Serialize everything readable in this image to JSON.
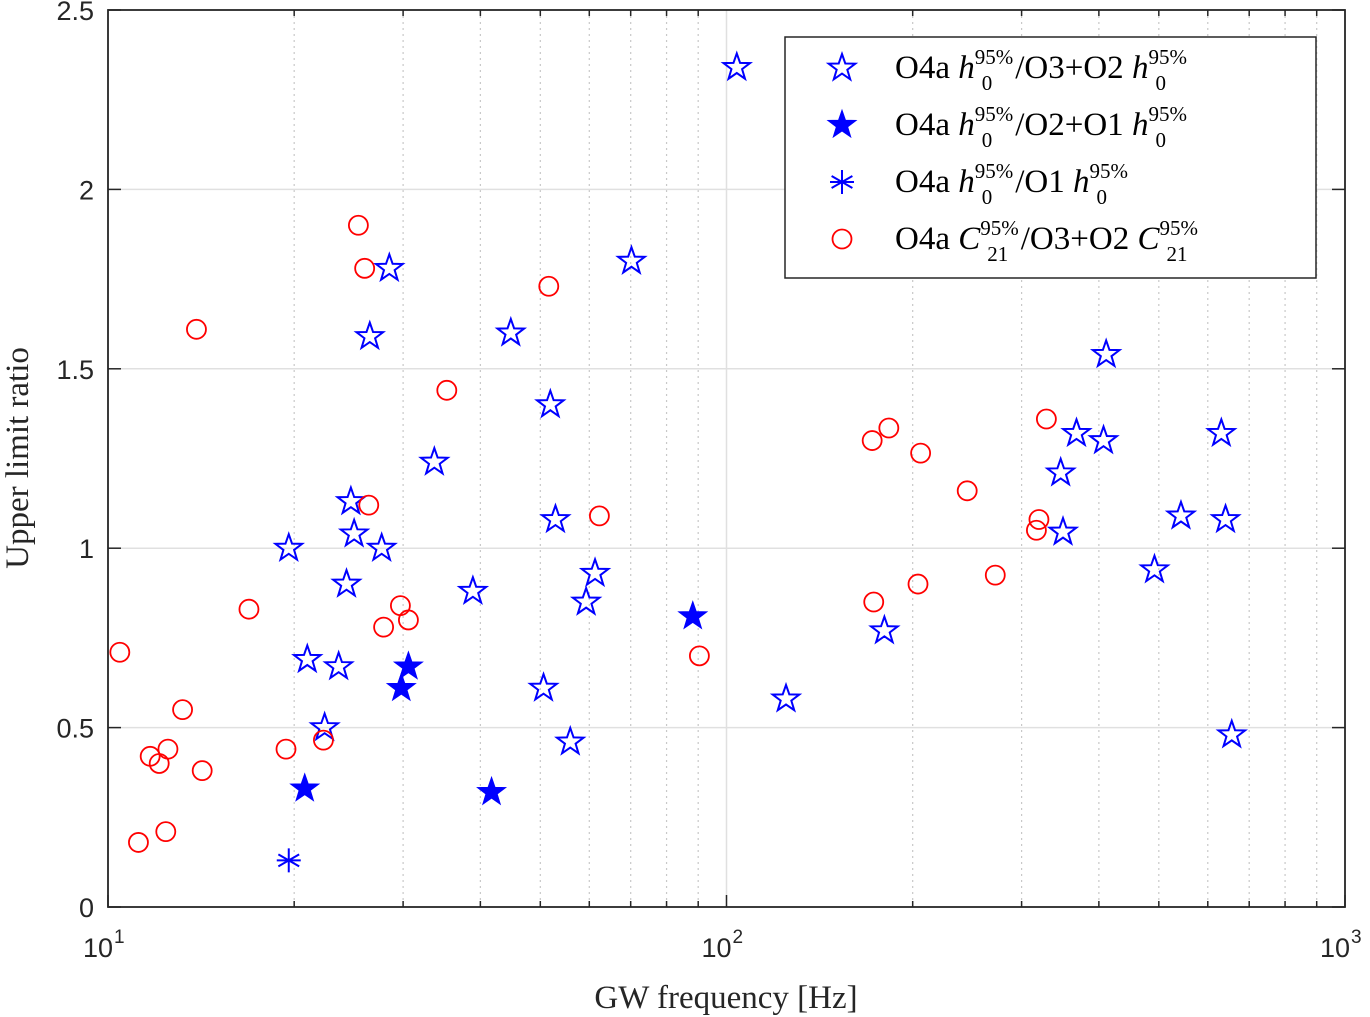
{
  "chart_data": {
    "type": "scatter",
    "title": "",
    "xlabel": "GW frequency [Hz]",
    "ylabel": "Upper limit ratio",
    "xscale": "log",
    "xlim": [
      10,
      1000
    ],
    "ylim": [
      0,
      2.5
    ],
    "xticks": [
      {
        "value": 10,
        "base": "10",
        "exp": "1"
      },
      {
        "value": 100,
        "base": "10",
        "exp": "2"
      },
      {
        "value": 1000,
        "base": "10",
        "exp": "3"
      }
    ],
    "yticks": [
      {
        "value": 0,
        "label": "0"
      },
      {
        "value": 0.5,
        "label": "0.5"
      },
      {
        "value": 1,
        "label": "1"
      },
      {
        "value": 1.5,
        "label": "1.5"
      },
      {
        "value": 2,
        "label": "2"
      },
      {
        "value": 2.5,
        "label": "2.5"
      }
    ],
    "grid": true,
    "legend_position": "top-right",
    "series": [
      {
        "name": "O4a h0 95% / O3+O2 h0 95%",
        "legend": {
          "prefix": "O4a ",
          "sym1": "h",
          "sub1": "0",
          "sup1": "95%",
          "mid": "/O3+O2 ",
          "sym2": "h",
          "sub2": "0",
          "sup2": "95%"
        },
        "marker": "star-open",
        "color": "#0000ff",
        "points": [
          [
            19.6,
            1.0
          ],
          [
            21.0,
            0.69
          ],
          [
            23.6,
            0.67
          ],
          [
            22.4,
            0.5
          ],
          [
            24.3,
            0.9
          ],
          [
            25.0,
            1.04
          ],
          [
            24.7,
            1.13
          ],
          [
            27.7,
            1.0
          ],
          [
            26.5,
            1.59
          ],
          [
            28.5,
            1.78
          ],
          [
            33.7,
            1.24
          ],
          [
            38.9,
            0.88
          ],
          [
            44.8,
            1.6
          ],
          [
            51.9,
            1.4
          ],
          [
            52.9,
            1.08
          ],
          [
            50.6,
            0.61
          ],
          [
            55.9,
            0.46
          ],
          [
            59.3,
            0.85
          ],
          [
            61.3,
            0.93
          ],
          [
            70.2,
            1.8
          ],
          [
            103.9,
            2.34
          ],
          [
            124.8,
            0.58
          ],
          [
            180,
            0.77
          ],
          [
            347,
            1.21
          ],
          [
            350,
            1.045
          ],
          [
            368,
            1.32
          ],
          [
            407,
            1.3
          ],
          [
            411,
            1.54
          ],
          [
            492,
            0.94
          ],
          [
            543,
            1.09
          ],
          [
            631,
            1.32
          ],
          [
            641,
            1.08
          ],
          [
            656,
            0.48
          ]
        ]
      },
      {
        "name": "O4a h0 95% / O2+O1 h0 95%",
        "legend": {
          "prefix": "O4a ",
          "sym1": "h",
          "sub1": "0",
          "sup1": "95%",
          "mid": "/O2+O1 ",
          "sym2": "h",
          "sub2": "0",
          "sup2": "95%"
        },
        "marker": "star-filled",
        "color": "#0000ff",
        "points": [
          [
            20.8,
            0.33
          ],
          [
            29.8,
            0.61
          ],
          [
            30.6,
            0.67
          ],
          [
            41.7,
            0.32
          ],
          [
            88.2,
            0.81
          ]
        ]
      },
      {
        "name": "O4a h0 95% / O1 h0 95%",
        "legend": {
          "prefix": "O4a ",
          "sym1": "h",
          "sub1": "0",
          "sup1": "95%",
          "mid": "/O1 ",
          "sym2": "h",
          "sub2": "0",
          "sup2": "95%"
        },
        "marker": "asterisk",
        "color": "#0000ff",
        "points": [
          [
            19.6,
            0.13
          ]
        ]
      },
      {
        "name": "O4a C21 95% / O3+O2 C21 95%",
        "legend": {
          "prefix": "O4a ",
          "sym1": "C",
          "sub1": "21",
          "sup1": "95%",
          "mid": "/O3+O2 ",
          "sym2": "C",
          "sub2": "21",
          "sup2": "95%"
        },
        "marker": "circle-open",
        "color": "#ff0000",
        "points": [
          [
            10.45,
            0.71
          ],
          [
            11.2,
            0.18
          ],
          [
            11.7,
            0.42
          ],
          [
            12.1,
            0.4
          ],
          [
            12.4,
            0.21
          ],
          [
            12.5,
            0.44
          ],
          [
            13.2,
            0.55
          ],
          [
            13.9,
            1.61
          ],
          [
            14.2,
            0.38
          ],
          [
            16.9,
            0.83
          ],
          [
            19.4,
            0.44
          ],
          [
            22.3,
            0.465
          ],
          [
            25.4,
            1.9
          ],
          [
            26.0,
            1.78
          ],
          [
            26.4,
            1.12
          ],
          [
            27.9,
            0.78
          ],
          [
            29.7,
            0.84
          ],
          [
            30.6,
            0.8
          ],
          [
            35.3,
            1.44
          ],
          [
            51.6,
            1.73
          ],
          [
            62.3,
            1.09
          ],
          [
            90.4,
            0.7
          ],
          [
            172,
            1.3
          ],
          [
            173,
            0.85
          ],
          [
            183,
            1.335
          ],
          [
            206,
            1.265
          ],
          [
            204,
            0.9
          ],
          [
            245,
            1.16
          ],
          [
            272,
            0.925
          ],
          [
            320,
            1.08
          ],
          [
            317,
            1.05
          ],
          [
            329,
            1.36
          ]
        ]
      }
    ]
  }
}
